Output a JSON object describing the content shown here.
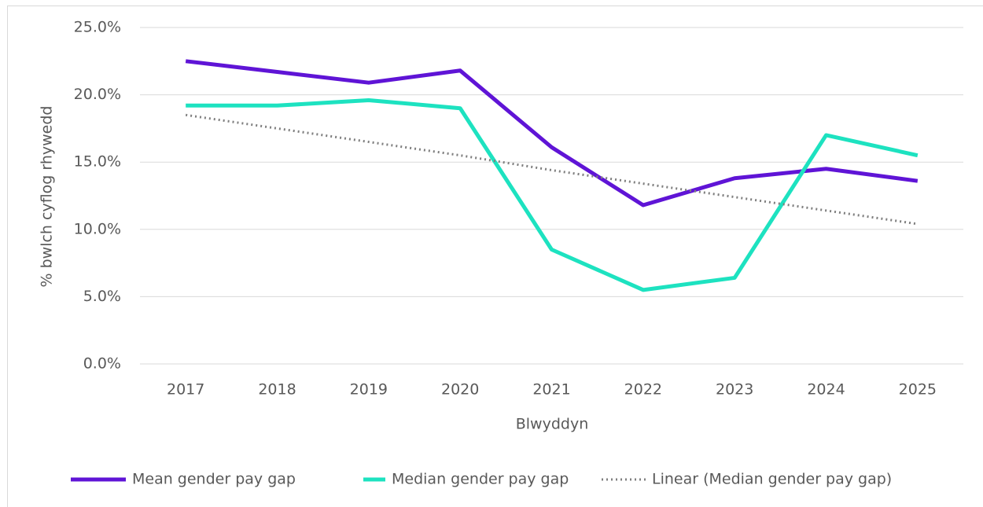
{
  "chart_data": {
    "type": "line",
    "y_axis_label": "% bwlch cyflog rhywedd",
    "x_axis_label": "Blwyddyn",
    "categories": [
      "2017",
      "2018",
      "2019",
      "2020",
      "2021",
      "2022",
      "2023",
      "2024",
      "2025"
    ],
    "series": [
      {
        "name": "Mean gender pay gap",
        "color": "#5f14d6",
        "values": [
          22.5,
          21.7,
          20.9,
          21.8,
          16.1,
          11.8,
          13.8,
          14.5,
          13.6
        ]
      },
      {
        "name": "Median gender pay gap",
        "color": "#1de2c0",
        "values": [
          19.2,
          19.2,
          19.6,
          19.0,
          8.5,
          5.5,
          6.4,
          17.0,
          15.5
        ]
      },
      {
        "name": "Linear (Median gender pay gap)",
        "color": "#7f7f7f",
        "dashed": true,
        "values": [
          18.5,
          17.5,
          16.5,
          15.5,
          14.4,
          13.4,
          12.4,
          11.4,
          10.4
        ]
      }
    ],
    "ylim": [
      0,
      25
    ],
    "yticks": [
      {
        "value": 0,
        "label": "0.0%"
      },
      {
        "value": 5,
        "label": "5.0%"
      },
      {
        "value": 10,
        "label": "10.0%"
      },
      {
        "value": 15,
        "label": "15.0%"
      },
      {
        "value": 20,
        "label": "20.0%"
      },
      {
        "value": 25,
        "label": "25.0%"
      }
    ],
    "grid": true,
    "legend": "bottom"
  }
}
